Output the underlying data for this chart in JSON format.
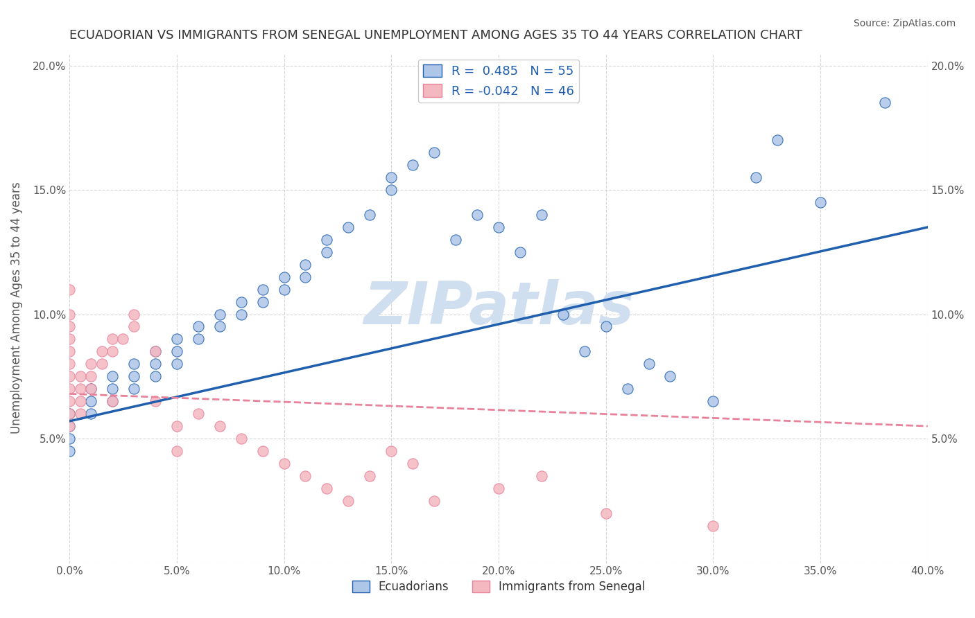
{
  "title": "ECUADORIAN VS IMMIGRANTS FROM SENEGAL UNEMPLOYMENT AMONG AGES 35 TO 44 YEARS CORRELATION CHART",
  "source_text": "Source: ZipAtlas.com",
  "ylabel": "Unemployment Among Ages 35 to 44 years",
  "watermark": "ZIPatlas",
  "xlim": [
    0.0,
    0.4
  ],
  "ylim": [
    0.0,
    0.205
  ],
  "xticks": [
    0.0,
    0.05,
    0.1,
    0.15,
    0.2,
    0.25,
    0.3,
    0.35,
    0.4
  ],
  "yticks": [
    0.0,
    0.05,
    0.1,
    0.15,
    0.2
  ],
  "xticklabels": [
    "0.0%",
    "5.0%",
    "10.0%",
    "15.0%",
    "20.0%",
    "25.0%",
    "30.0%",
    "35.0%",
    "40.0%"
  ],
  "yticklabels": [
    "",
    "5.0%",
    "10.0%",
    "15.0%",
    "20.0%"
  ],
  "legend_blue_r": "R =  0.485",
  "legend_blue_n": "N = 55",
  "legend_pink_r": "R = -0.042",
  "legend_pink_n": "N = 46",
  "legend_blue_label": "Ecuadorians",
  "legend_pink_label": "Immigrants from Senegal",
  "blue_color": "#aec6e8",
  "pink_color": "#f4b8c1",
  "blue_line_color": "#1f5fad",
  "pink_line_color": "#e8829a",
  "title_color": "#333333",
  "axis_label_color": "#555555",
  "tick_color": "#555555",
  "source_color": "#555555",
  "watermark_color": "#d0dff0",
  "grid_color": "#cccccc",
  "blue_scatter_x": [
    0.0,
    0.0,
    0.0,
    0.0,
    0.01,
    0.01,
    0.01,
    0.02,
    0.02,
    0.02,
    0.03,
    0.03,
    0.03,
    0.04,
    0.04,
    0.04,
    0.05,
    0.05,
    0.05,
    0.06,
    0.06,
    0.07,
    0.07,
    0.08,
    0.08,
    0.09,
    0.09,
    0.1,
    0.1,
    0.11,
    0.11,
    0.12,
    0.12,
    0.13,
    0.14,
    0.15,
    0.15,
    0.16,
    0.17,
    0.18,
    0.19,
    0.2,
    0.21,
    0.22,
    0.23,
    0.24,
    0.25,
    0.26,
    0.27,
    0.28,
    0.3,
    0.32,
    0.33,
    0.35,
    0.38
  ],
  "blue_scatter_y": [
    0.06,
    0.055,
    0.05,
    0.045,
    0.07,
    0.065,
    0.06,
    0.075,
    0.07,
    0.065,
    0.08,
    0.075,
    0.07,
    0.085,
    0.08,
    0.075,
    0.09,
    0.085,
    0.08,
    0.095,
    0.09,
    0.1,
    0.095,
    0.105,
    0.1,
    0.11,
    0.105,
    0.115,
    0.11,
    0.12,
    0.115,
    0.13,
    0.125,
    0.135,
    0.14,
    0.155,
    0.15,
    0.16,
    0.165,
    0.13,
    0.14,
    0.135,
    0.125,
    0.14,
    0.1,
    0.085,
    0.095,
    0.07,
    0.08,
    0.075,
    0.065,
    0.155,
    0.17,
    0.145,
    0.185
  ],
  "pink_scatter_x": [
    0.0,
    0.0,
    0.0,
    0.0,
    0.0,
    0.0,
    0.0,
    0.0,
    0.0,
    0.0,
    0.0,
    0.005,
    0.005,
    0.005,
    0.005,
    0.01,
    0.01,
    0.01,
    0.015,
    0.015,
    0.02,
    0.02,
    0.02,
    0.025,
    0.03,
    0.03,
    0.04,
    0.04,
    0.05,
    0.05,
    0.06,
    0.07,
    0.08,
    0.09,
    0.1,
    0.11,
    0.12,
    0.13,
    0.14,
    0.15,
    0.16,
    0.17,
    0.2,
    0.22,
    0.25,
    0.3
  ],
  "pink_scatter_y": [
    0.06,
    0.055,
    0.09,
    0.085,
    0.1,
    0.095,
    0.07,
    0.065,
    0.08,
    0.075,
    0.11,
    0.065,
    0.06,
    0.075,
    0.07,
    0.08,
    0.075,
    0.07,
    0.085,
    0.08,
    0.09,
    0.085,
    0.065,
    0.09,
    0.1,
    0.095,
    0.085,
    0.065,
    0.055,
    0.045,
    0.06,
    0.055,
    0.05,
    0.045,
    0.04,
    0.035,
    0.03,
    0.025,
    0.035,
    0.045,
    0.04,
    0.025,
    0.03,
    0.035,
    0.02,
    0.015
  ],
  "blue_trend_x": [
    0.0,
    0.4
  ],
  "blue_trend_y": [
    0.057,
    0.135
  ],
  "pink_trend_x": [
    0.0,
    0.4
  ],
  "pink_trend_y": [
    0.068,
    0.055
  ]
}
